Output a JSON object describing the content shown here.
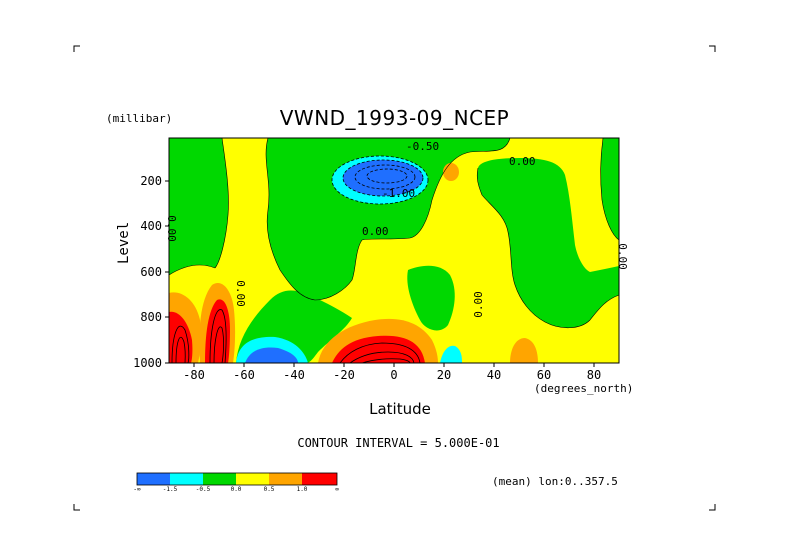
{
  "chart_data": {
    "type": "heatmap",
    "title": "VWND_1993-09_NCEP",
    "xlabel": "Latitude",
    "x_units": "(degrees_north)",
    "ylabel": "Level",
    "y_units": "(millibar)",
    "xlim": [
      -90,
      90
    ],
    "ylim": [
      1000,
      10
    ],
    "x_ticks": [
      "-80",
      "-60",
      "-40",
      "-20",
      "0",
      "20",
      "40",
      "60",
      "80"
    ],
    "x_tick_values": [
      -80,
      -60,
      -40,
      -20,
      0,
      20,
      40,
      60,
      80
    ],
    "y_ticks": [
      "200",
      "400",
      "600",
      "800",
      "1000"
    ],
    "y_tick_values": [
      200,
      400,
      600,
      800,
      1000
    ],
    "contour_interval_text": "CONTOUR INTERVAL = 5.000E-01",
    "footer_text": "(mean) lon:0..357.5",
    "contour_labels": [
      "-0.50",
      "0.00",
      "-1.00",
      "0.00",
      "0.00",
      "0.00",
      "0.00",
      "0.00"
    ],
    "colorbar": {
      "colors": [
        "#1f6fff",
        "#00ffff",
        "#00d800",
        "#ffff00",
        "#ffa500",
        "#ff0000"
      ],
      "labels": [
        "-∞",
        "-1.5",
        "-0.5",
        "0.0",
        "0.5",
        "1.0",
        "∞"
      ]
    },
    "levels_shown": [
      "-1.5",
      "-1.0",
      "-0.5",
      "0.0",
      "0.5",
      "1.0",
      "1.5"
    ],
    "color_meaning": {
      "#1f6fff": "< -1.5",
      "#00ffff": "-1.5 to -1.0",
      "#00d800": "-1.0 to -0.5 ... 0.0",
      "#ffff00": "0.0 to 0.5",
      "#ffa500": "0.5 to 1.0",
      "#ff0000": "> 1.0"
    }
  }
}
